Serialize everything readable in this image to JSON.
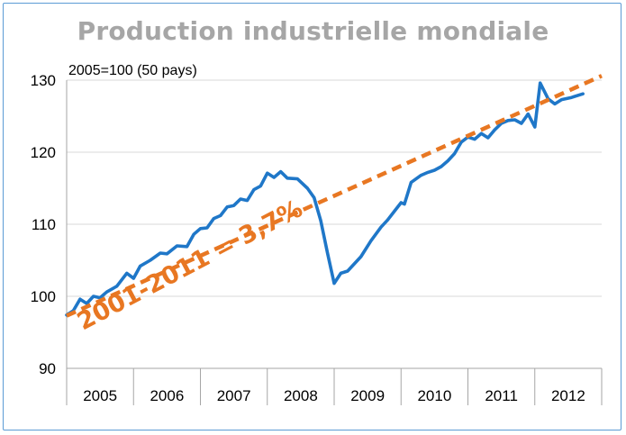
{
  "chart_data": {
    "type": "line",
    "title": "Production industrielle mondiale",
    "subtitle": "2005=100 (50 pays)",
    "ylim": [
      90,
      130
    ],
    "yticks": [
      90,
      100,
      110,
      120,
      130
    ],
    "xlim": [
      2005.0,
      2013.0
    ],
    "x_categories": [
      "2005",
      "2006",
      "2007",
      "2008",
      "2009",
      "2010",
      "2011",
      "2012"
    ],
    "grid": true,
    "annotation": "2001-2011 = 3,7%",
    "colors": {
      "series": "#1f77c8",
      "trend": "#e87722"
    },
    "series": [
      {
        "name": "",
        "points": [
          [
            2005.0,
            97.4
          ],
          [
            2005.1,
            98.0
          ],
          [
            2005.2,
            99.6
          ],
          [
            2005.3,
            99.0
          ],
          [
            2005.4,
            100.0
          ],
          [
            2005.5,
            99.8
          ],
          [
            2005.6,
            100.6
          ],
          [
            2005.75,
            101.4
          ],
          [
            2005.9,
            103.2
          ],
          [
            2006.0,
            102.5
          ],
          [
            2006.1,
            104.2
          ],
          [
            2006.25,
            105.0
          ],
          [
            2006.4,
            106.0
          ],
          [
            2006.5,
            105.9
          ],
          [
            2006.65,
            107.0
          ],
          [
            2006.8,
            106.9
          ],
          [
            2006.9,
            108.6
          ],
          [
            2007.0,
            109.4
          ],
          [
            2007.1,
            109.5
          ],
          [
            2007.2,
            110.8
          ],
          [
            2007.3,
            111.2
          ],
          [
            2007.4,
            112.4
          ],
          [
            2007.5,
            112.6
          ],
          [
            2007.6,
            113.5
          ],
          [
            2007.7,
            113.3
          ],
          [
            2007.8,
            114.8
          ],
          [
            2007.9,
            115.3
          ],
          [
            2008.0,
            117.1
          ],
          [
            2008.1,
            116.5
          ],
          [
            2008.2,
            117.3
          ],
          [
            2008.3,
            116.4
          ],
          [
            2008.45,
            116.3
          ],
          [
            2008.6,
            115.0
          ],
          [
            2008.7,
            113.7
          ],
          [
            2008.8,
            110.5
          ],
          [
            2008.9,
            106.0
          ],
          [
            2009.0,
            101.8
          ],
          [
            2009.1,
            103.2
          ],
          [
            2009.2,
            103.5
          ],
          [
            2009.3,
            104.5
          ],
          [
            2009.4,
            105.5
          ],
          [
            2009.55,
            107.7
          ],
          [
            2009.7,
            109.6
          ],
          [
            2009.8,
            110.6
          ],
          [
            2009.9,
            111.8
          ],
          [
            2010.0,
            113.0
          ],
          [
            2010.05,
            112.8
          ],
          [
            2010.15,
            115.8
          ],
          [
            2010.3,
            116.8
          ],
          [
            2010.4,
            117.2
          ],
          [
            2010.5,
            117.5
          ],
          [
            2010.6,
            118.0
          ],
          [
            2010.7,
            118.8
          ],
          [
            2010.8,
            119.8
          ],
          [
            2010.9,
            121.4
          ],
          [
            2011.0,
            122.1
          ],
          [
            2011.1,
            121.8
          ],
          [
            2011.2,
            122.6
          ],
          [
            2011.3,
            122.0
          ],
          [
            2011.4,
            123.1
          ],
          [
            2011.5,
            124.0
          ],
          [
            2011.6,
            124.4
          ],
          [
            2011.7,
            124.5
          ],
          [
            2011.8,
            124.0
          ],
          [
            2011.9,
            125.3
          ],
          [
            2012.0,
            123.5
          ],
          [
            2012.08,
            129.6
          ],
          [
            2012.2,
            127.4
          ],
          [
            2012.3,
            126.7
          ],
          [
            2012.4,
            127.3
          ],
          [
            2012.55,
            127.6
          ],
          [
            2012.65,
            127.9
          ],
          [
            2012.72,
            128.1
          ]
        ]
      },
      {
        "name": "",
        "style": "dashed",
        "points": [
          [
            2005.0,
            97.3
          ],
          [
            2013.0,
            130.6
          ]
        ]
      }
    ]
  }
}
